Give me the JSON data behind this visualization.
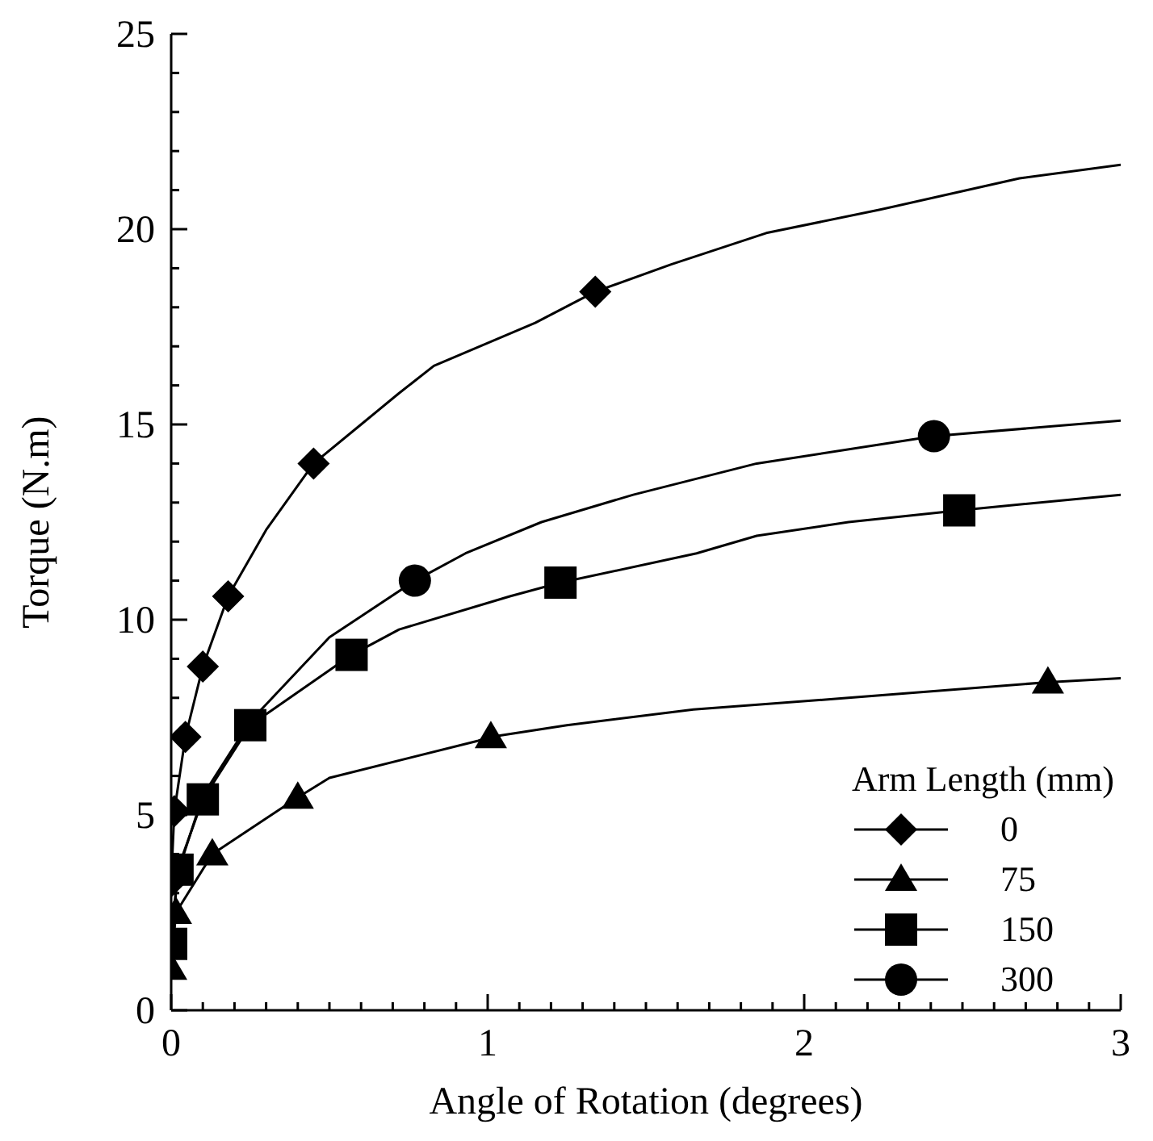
{
  "chart_data": {
    "type": "line",
    "xlabel": "Angle of Rotation (degrees)",
    "ylabel": "Torque (N.m)",
    "legend_title": "Arm Length (mm)",
    "legend": "bottom right",
    "xlim": [
      0,
      3
    ],
    "ylim": [
      0,
      25
    ],
    "xticks": [
      0,
      {
        "value": 0.1,
        "label": null
      },
      {
        "value": 0.2,
        "label": null
      },
      {
        "value": 0.3,
        "label": null
      },
      {
        "value": 0.4,
        "label": null
      },
      {
        "value": 0.5,
        "label": null
      },
      {
        "value": 0.6,
        "label": null
      },
      {
        "value": 0.7,
        "label": null
      },
      {
        "value": 0.8,
        "label": null
      },
      {
        "value": 0.9,
        "label": null
      },
      1,
      {
        "value": 1.1,
        "label": null
      },
      {
        "value": 1.2,
        "label": null
      },
      {
        "value": 1.3,
        "label": null
      },
      {
        "value": 1.4,
        "label": null
      },
      {
        "value": 1.5,
        "label": null
      },
      {
        "value": 1.6,
        "label": null
      },
      {
        "value": 1.7,
        "label": null
      },
      {
        "value": 1.8,
        "label": null
      },
      {
        "value": 1.9,
        "label": null
      },
      2,
      {
        "value": 2.1,
        "label": null
      },
      {
        "value": 2.2,
        "label": null
      },
      {
        "value": 2.3,
        "label": null
      },
      {
        "value": 2.4,
        "label": null
      },
      {
        "value": 2.5,
        "label": null
      },
      {
        "value": 2.6,
        "label": null
      },
      {
        "value": 2.7,
        "label": null
      },
      {
        "value": 2.8,
        "label": null
      },
      {
        "value": 2.9,
        "label": null
      },
      3
    ],
    "yticks": [
      0,
      {
        "value": 1,
        "label": null
      },
      {
        "value": 2,
        "label": null
      },
      {
        "value": 3,
        "label": null
      },
      {
        "value": 4,
        "label": null
      },
      5,
      {
        "value": 6,
        "label": null
      },
      {
        "value": 7,
        "label": null
      },
      {
        "value": 8,
        "label": null
      },
      {
        "value": 9,
        "label": null
      },
      10,
      {
        "value": 11,
        "label": null
      },
      {
        "value": 12,
        "label": null
      },
      {
        "value": 13,
        "label": null
      },
      {
        "value": 14,
        "label": null
      },
      15,
      {
        "value": 16,
        "label": null
      },
      {
        "value": 17,
        "label": null
      },
      {
        "value": 18,
        "label": null
      },
      {
        "value": 19,
        "label": null
      },
      20,
      {
        "value": 21,
        "label": null
      },
      {
        "value": 22,
        "label": null
      },
      {
        "value": 23,
        "label": null
      },
      {
        "value": 24,
        "label": null
      },
      25
    ],
    "series": [
      {
        "marker": "none",
        "color": "#000000",
        "x": [
          0,
          0.01,
          0.045,
          0.1,
          0.18,
          0.3,
          0.45,
          0.6,
          0.72,
          0.83,
          1.15,
          1.34,
          1.58,
          1.88,
          2.24,
          2.68,
          3
        ],
        "values": [
          3.3,
          5.1,
          7.0,
          8.8,
          10.6,
          12.3,
          14.0,
          15.0,
          15.8,
          16.5,
          17.6,
          18.4,
          19.1,
          19.9,
          20.5,
          21.3,
          21.65
        ]
      },
      {
        "marker": "none",
        "color": "#000000",
        "x": [
          0,
          0.015,
          0.13,
          0.4,
          0.5,
          0.97,
          1.01,
          1.25,
          1.65,
          2.14,
          2.77,
          3
        ],
        "values": [
          1.07,
          2.5,
          4.0,
          5.45,
          5.95,
          6.9,
          7.0,
          7.3,
          7.7,
          8.0,
          8.4,
          8.5
        ]
      },
      {
        "marker": "none",
        "color": "#000000",
        "x": [
          0,
          0.02,
          0.1,
          0.25,
          0.57,
          0.72,
          1.07,
          1.23,
          1.66,
          1.85,
          2.14,
          2.49,
          3
        ],
        "values": [
          1.7,
          3.6,
          5.4,
          7.3,
          9.1,
          9.75,
          10.6,
          10.95,
          11.7,
          12.15,
          12.5,
          12.8,
          13.2
        ]
      },
      {
        "marker": "none",
        "color": "#000000",
        "x": [
          0,
          0.02,
          0.1,
          0.25,
          0.5,
          0.77,
          0.93,
          1.17,
          1.46,
          1.85,
          2.41,
          3
        ],
        "values": [
          1.5,
          3.5,
          5.5,
          7.4,
          9.55,
          11.0,
          11.7,
          12.5,
          13.2,
          14.0,
          14.7,
          15.1
        ]
      },
      {
        "type": "scatter",
        "name": "0",
        "marker": "diamond",
        "color": "#000000",
        "x": [
          0,
          0.01,
          0.045,
          0.1,
          0.18,
          0.45,
          1.34
        ],
        "values": [
          3.3,
          5.1,
          7.0,
          8.8,
          10.6,
          14.0,
          18.4
        ]
      },
      {
        "type": "scatter",
        "name": "75",
        "marker": "triangle",
        "color": "#000000",
        "x": [
          0,
          0.015,
          0.13,
          0.4,
          1.01,
          2.77
        ],
        "values": [
          1.07,
          2.5,
          4.0,
          5.45,
          7.0,
          8.4
        ]
      },
      {
        "type": "scatter",
        "name": "150",
        "marker": "square",
        "color": "#000000",
        "x": [
          0,
          0.02,
          0.1,
          0.25,
          0.57,
          1.23,
          2.49
        ],
        "values": [
          1.7,
          3.6,
          5.4,
          7.3,
          9.1,
          10.95,
          12.8
        ]
      },
      {
        "type": "scatter",
        "name": "300",
        "marker": "circle",
        "color": "#000000",
        "x": [
          0.77,
          2.41
        ],
        "values": [
          11.0,
          14.7
        ]
      }
    ]
  }
}
